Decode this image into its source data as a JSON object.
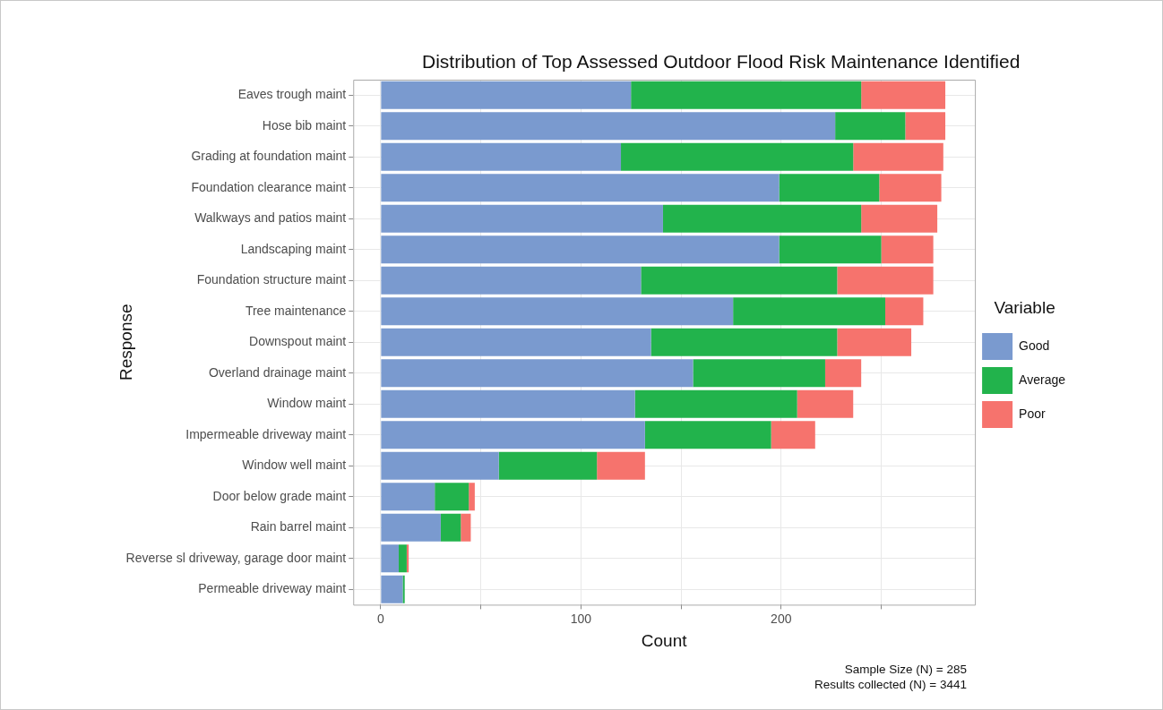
{
  "chart_data": {
    "type": "bar",
    "orientation": "horizontal",
    "stacked": true,
    "title": "Distribution of Top Assessed Outdoor Flood Risk Maintenance Identified",
    "xlabel": "Count",
    "ylabel": "Response",
    "legend_title": "Variable",
    "legend": "right",
    "grid": true,
    "categories": [
      "Eaves trough maint",
      "Hose bib maint",
      "Grading at foundation maint",
      "Foundation clearance maint",
      "Walkways and patios maint",
      "Landscaping maint",
      "Foundation structure maint",
      "Tree maintenance",
      "Downspout maint",
      "Overland drainage maint",
      "Window maint",
      "Impermeable driveway maint",
      "Window well maint",
      "Door below grade maint",
      "Rain barrel maint",
      "Reverse sl driveway, garage door maint",
      "Permeable driveway maint"
    ],
    "series": [
      {
        "name": "Good",
        "color": "#7a9acf",
        "values": [
          125,
          227,
          120,
          199,
          141,
          199,
          130,
          176,
          135,
          156,
          127,
          132,
          59,
          27,
          30,
          9,
          11
        ]
      },
      {
        "name": "Average",
        "color": "#22b34c",
        "values": [
          115,
          35,
          116,
          50,
          99,
          51,
          98,
          76,
          93,
          66,
          81,
          63,
          49,
          17,
          10,
          4,
          1
        ]
      },
      {
        "name": "Poor",
        "color": "#f6736d",
        "values": [
          42,
          20,
          45,
          31,
          38,
          26,
          48,
          19,
          37,
          18,
          28,
          22,
          24,
          3,
          5,
          1,
          0
        ]
      }
    ],
    "xlim": [
      -13.7,
      296.8
    ],
    "xticks": [
      0,
      {
        "value": 50,
        "label": null
      },
      100,
      {
        "value": 150,
        "label": null
      },
      200,
      {
        "value": 250,
        "label": null
      }
    ],
    "annotations": [
      "Sample Size (N) = 285",
      "Results collected (N) = 3441"
    ]
  }
}
